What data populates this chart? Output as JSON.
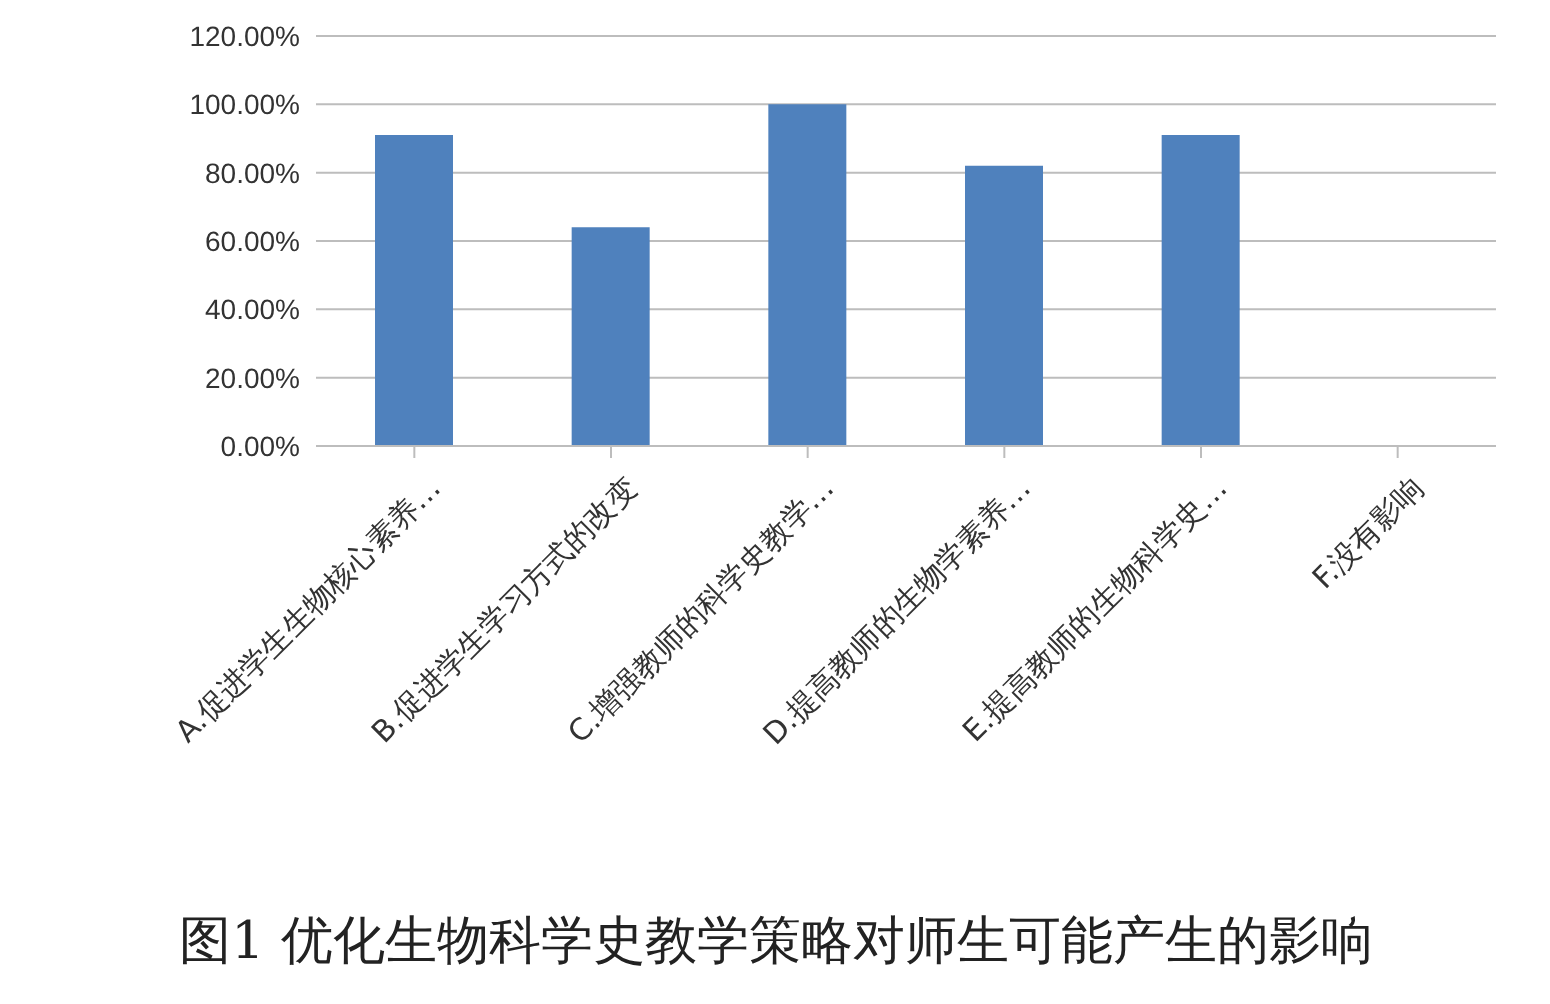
{
  "chart_data": {
    "type": "bar",
    "title": "图1 优化生物科学史教学策略对师生可能产生的影响",
    "categories": [
      "A.促进学生生物核心素养…",
      "B.促进学生学习方式的改变",
      "C.增强教师的科学史教学…",
      "D.提高教师的生物学素养…",
      "E.提高教师的生物科学史…",
      "F.没有影响"
    ],
    "values": [
      91,
      64,
      100,
      82,
      91,
      0
    ],
    "color": "#4f81bd",
    "ylim": [
      0,
      120
    ],
    "yticks": [
      {
        "value": 0,
        "label": "0.00%"
      },
      {
        "value": 20,
        "label": "20.00%"
      },
      {
        "value": 40,
        "label": "40.00%"
      },
      {
        "value": 60,
        "label": "60.00%"
      },
      {
        "value": 80,
        "label": "80.00%"
      },
      {
        "value": 100,
        "label": "100.00%"
      },
      {
        "value": 120,
        "label": "120.00%"
      }
    ],
    "grid": "y",
    "legend": false
  }
}
